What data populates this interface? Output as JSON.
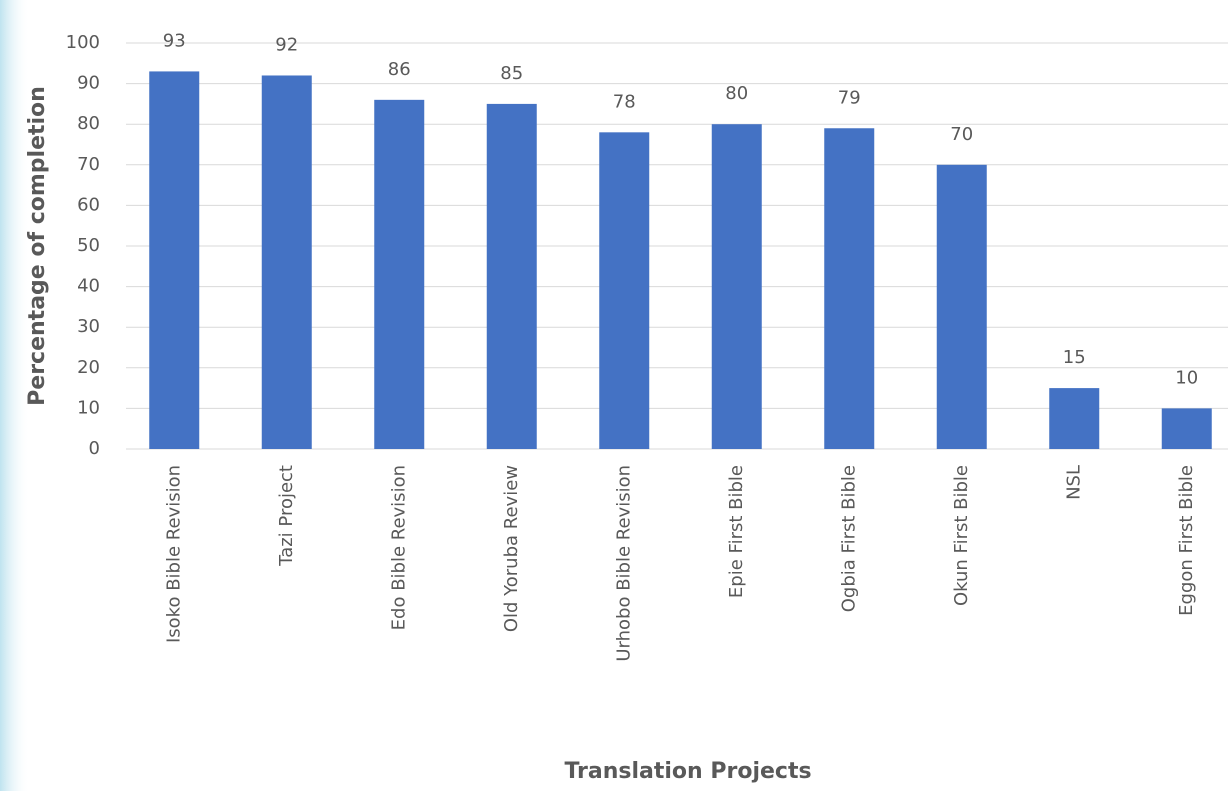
{
  "chart_data": {
    "type": "bar",
    "x_label": "Translation Projects",
    "y_label": "Percentage of completion",
    "categories": [
      "Isoko Bible Revision",
      "Tazi Project",
      "Edo Bible Revision",
      "Old Yoruba Review",
      "Urhobo Bible Revision",
      "Epie First Bible",
      "Ogbia First Bible",
      "Okun First Bible",
      "NSL",
      "Eggon First Bible"
    ],
    "values": [
      93,
      92,
      86,
      85,
      78,
      80,
      79,
      70,
      15,
      10
    ],
    "color": "#4472c4",
    "ylim": [
      0,
      100
    ],
    "yticks": [
      0,
      10,
      20,
      30,
      40,
      50,
      60,
      70,
      80,
      90,
      100
    ],
    "grid": true
  }
}
